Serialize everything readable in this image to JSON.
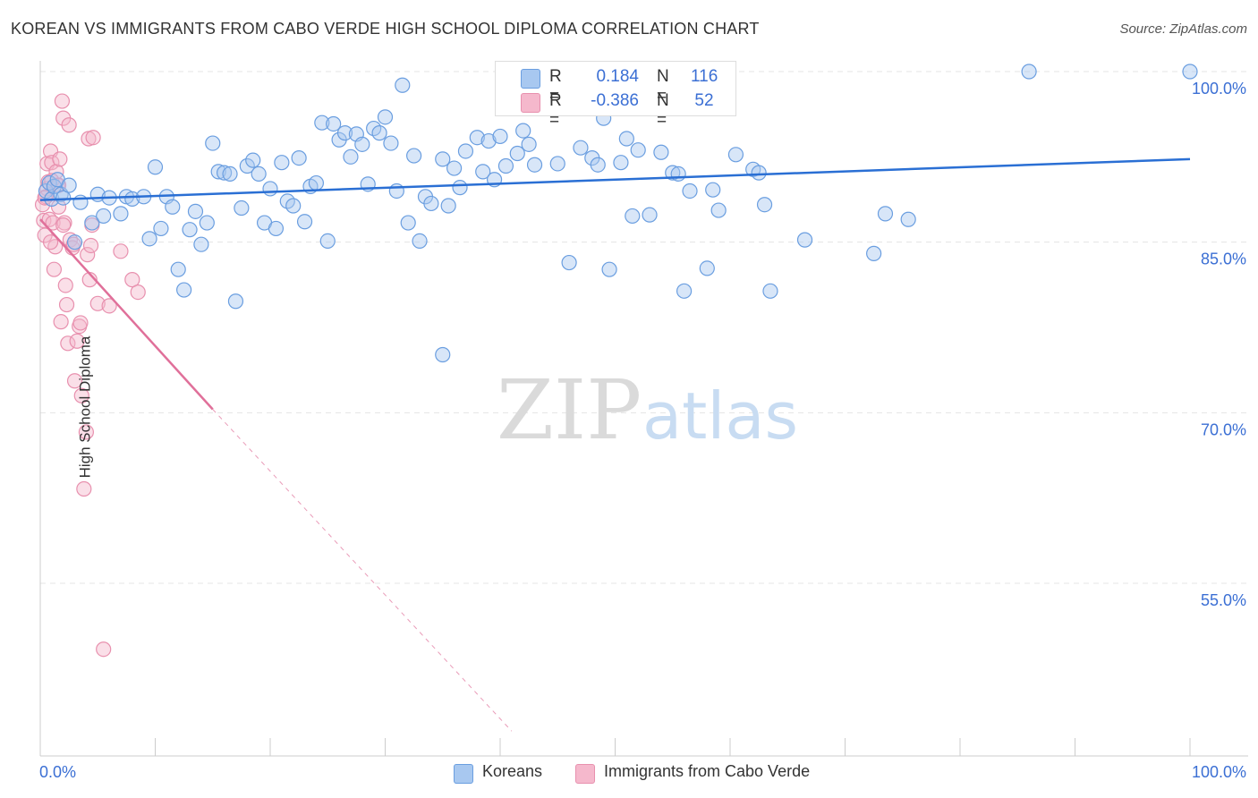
{
  "title": "KOREAN VS IMMIGRANTS FROM CABO VERDE HIGH SCHOOL DIPLOMA CORRELATION CHART",
  "source": "Source: ZipAtlas.com",
  "watermark": {
    "zip": "ZIP",
    "atlas": "atlas"
  },
  "legend": {
    "koreans": {
      "r_label": "R =",
      "r_value": "0.184",
      "n_label": "N =",
      "n_value": "116"
    },
    "caboverde": {
      "r_label": "R =",
      "r_value": "-0.386",
      "n_label": "N =",
      "n_value": "52"
    }
  },
  "bottom_legend": {
    "koreans": "Koreans",
    "caboverde": "Immigrants from Cabo Verde"
  },
  "colors": {
    "blue_fill": "#a8c8f0",
    "blue_stroke": "#6a9ee0",
    "blue_line": "#2a6fd4",
    "pink_fill": "#f5b8cc",
    "pink_stroke": "#e890ae",
    "pink_line": "#e0709a",
    "tick_label": "#3b6fd4",
    "grid": "#e4e4e4"
  },
  "chart_data": {
    "type": "scatter",
    "xlabel": "",
    "ylabel": "High School Diploma",
    "xlim": [
      0,
      100
    ],
    "ylim": [
      42,
      101
    ],
    "x_tick_labels": [
      "0.0%",
      "100.0%"
    ],
    "y_ticks": [
      100,
      85,
      70,
      55
    ],
    "y_tick_labels": [
      "100.0%",
      "85.0%",
      "70.0%",
      "55.0%"
    ],
    "grid": true,
    "series": [
      {
        "name": "Koreans",
        "trend": {
          "x0": 0,
          "y0": 88.7,
          "x1": 100,
          "y1": 92.3
        },
        "points": [
          [
            0.5,
            89.5
          ],
          [
            0.8,
            90.2
          ],
          [
            1.0,
            88.8
          ],
          [
            1.2,
            89.9
          ],
          [
            1.5,
            90.5
          ],
          [
            1.8,
            89.2
          ],
          [
            2.0,
            88.9
          ],
          [
            2.5,
            90.0
          ],
          [
            3.0,
            85.0
          ],
          [
            3.5,
            88.5
          ],
          [
            4.5,
            86.7
          ],
          [
            5.0,
            89.2
          ],
          [
            5.5,
            87.3
          ],
          [
            6.0,
            88.9
          ],
          [
            7.0,
            87.5
          ],
          [
            7.5,
            89.0
          ],
          [
            8.0,
            88.8
          ],
          [
            9.0,
            89.0
          ],
          [
            9.5,
            85.3
          ],
          [
            10.0,
            91.6
          ],
          [
            10.5,
            86.2
          ],
          [
            11.0,
            89.0
          ],
          [
            11.5,
            88.1
          ],
          [
            12.0,
            82.6
          ],
          [
            12.5,
            80.8
          ],
          [
            13.0,
            86.1
          ],
          [
            13.5,
            87.7
          ],
          [
            14.0,
            84.8
          ],
          [
            14.5,
            86.7
          ],
          [
            15.0,
            93.7
          ],
          [
            15.5,
            91.2
          ],
          [
            16.0,
            91.1
          ],
          [
            16.5,
            91.0
          ],
          [
            17.0,
            79.8
          ],
          [
            17.5,
            88.0
          ],
          [
            18.0,
            91.7
          ],
          [
            18.5,
            92.2
          ],
          [
            19.0,
            91.0
          ],
          [
            19.5,
            86.7
          ],
          [
            20.0,
            89.7
          ],
          [
            20.5,
            86.2
          ],
          [
            21.0,
            92.0
          ],
          [
            21.5,
            88.6
          ],
          [
            22.0,
            88.2
          ],
          [
            22.5,
            92.4
          ],
          [
            23.0,
            86.8
          ],
          [
            23.5,
            89.9
          ],
          [
            24.0,
            90.2
          ],
          [
            24.5,
            95.5
          ],
          [
            25.0,
            85.1
          ],
          [
            25.5,
            95.4
          ],
          [
            26.0,
            94.0
          ],
          [
            26.5,
            94.6
          ],
          [
            27.0,
            92.5
          ],
          [
            27.5,
            94.5
          ],
          [
            28.0,
            93.6
          ],
          [
            28.5,
            90.1
          ],
          [
            29.0,
            95.0
          ],
          [
            29.5,
            94.6
          ],
          [
            30.0,
            96.0
          ],
          [
            30.5,
            93.7
          ],
          [
            31.0,
            89.5
          ],
          [
            31.5,
            98.8
          ],
          [
            32.0,
            86.7
          ],
          [
            32.5,
            92.6
          ],
          [
            33.0,
            85.1
          ],
          [
            33.5,
            89.0
          ],
          [
            34.0,
            88.4
          ],
          [
            35.0,
            92.3
          ],
          [
            35.5,
            88.2
          ],
          [
            36.0,
            91.5
          ],
          [
            36.5,
            89.8
          ],
          [
            37.0,
            93.0
          ],
          [
            38.0,
            94.2
          ],
          [
            38.5,
            91.2
          ],
          [
            39.0,
            93.9
          ],
          [
            39.5,
            90.5
          ],
          [
            40.0,
            94.3
          ],
          [
            40.5,
            91.7
          ],
          [
            41.0,
            100.0
          ],
          [
            41.5,
            92.8
          ],
          [
            42.0,
            94.8
          ],
          [
            42.5,
            93.6
          ],
          [
            43.0,
            91.8
          ],
          [
            45.0,
            91.9
          ],
          [
            46.0,
            83.2
          ],
          [
            47.0,
            93.3
          ],
          [
            48.0,
            92.4
          ],
          [
            48.5,
            91.8
          ],
          [
            49.0,
            95.9
          ],
          [
            49.5,
            82.6
          ],
          [
            50.5,
            92.0
          ],
          [
            51.0,
            94.1
          ],
          [
            51.5,
            87.3
          ],
          [
            52.0,
            93.1
          ],
          [
            53.0,
            87.4
          ],
          [
            54.0,
            92.9
          ],
          [
            55.0,
            91.1
          ],
          [
            55.5,
            91.0
          ],
          [
            56.0,
            80.7
          ],
          [
            56.5,
            89.5
          ],
          [
            58.0,
            82.7
          ],
          [
            58.5,
            89.6
          ],
          [
            59.0,
            87.8
          ],
          [
            60.5,
            92.7
          ],
          [
            62.0,
            91.4
          ],
          [
            62.5,
            91.1
          ],
          [
            63.0,
            88.3
          ],
          [
            63.5,
            80.7
          ],
          [
            66.5,
            85.2
          ],
          [
            72.5,
            84.0
          ],
          [
            73.5,
            87.5
          ],
          [
            75.5,
            87.0
          ],
          [
            86.0,
            100.0
          ],
          [
            100.0,
            100.0
          ],
          [
            35.0,
            75.1
          ]
        ]
      },
      {
        "name": "Immigrants from Cabo Verde",
        "trend": {
          "x0": 0,
          "y0": 87.0,
          "x1": 15,
          "y1": 70.3
        },
        "trend_extension": {
          "x0": 15,
          "y0": 70.3,
          "x1": 41,
          "y1": 42
        },
        "points": [
          [
            0.2,
            88.3
          ],
          [
            0.3,
            86.9
          ],
          [
            0.4,
            85.6
          ],
          [
            0.5,
            89.0
          ],
          [
            0.6,
            91.9
          ],
          [
            0.7,
            90.3
          ],
          [
            0.8,
            87.0
          ],
          [
            0.9,
            93.0
          ],
          [
            1.0,
            92.0
          ],
          [
            1.1,
            86.7
          ],
          [
            1.2,
            82.6
          ],
          [
            1.3,
            84.6
          ],
          [
            1.4,
            91.2
          ],
          [
            1.5,
            90.0
          ],
          [
            1.6,
            88.1
          ],
          [
            1.7,
            92.3
          ],
          [
            1.8,
            78.0
          ],
          [
            1.9,
            97.4
          ],
          [
            2.0,
            95.9
          ],
          [
            2.1,
            86.7
          ],
          [
            2.2,
            81.2
          ],
          [
            2.3,
            79.5
          ],
          [
            2.4,
            76.1
          ],
          [
            2.5,
            95.3
          ],
          [
            2.6,
            85.2
          ],
          [
            2.8,
            84.5
          ],
          [
            2.9,
            84.8
          ],
          [
            3.0,
            72.8
          ],
          [
            3.2,
            76.3
          ],
          [
            3.4,
            77.6
          ],
          [
            3.5,
            77.9
          ],
          [
            3.6,
            71.5
          ],
          [
            3.8,
            63.3
          ],
          [
            4.0,
            68.3
          ],
          [
            4.1,
            83.9
          ],
          [
            4.2,
            94.1
          ],
          [
            4.3,
            81.7
          ],
          [
            4.4,
            84.7
          ],
          [
            4.5,
            86.5
          ],
          [
            4.6,
            94.2
          ],
          [
            5.0,
            79.6
          ],
          [
            5.5,
            49.2
          ],
          [
            6.0,
            79.4
          ],
          [
            7.0,
            84.2
          ],
          [
            8.0,
            81.7
          ],
          [
            8.5,
            80.6
          ],
          [
            0.6,
            89.7
          ],
          [
            1.0,
            90.4
          ],
          [
            0.4,
            88.9
          ],
          [
            1.6,
            90.0
          ],
          [
            0.9,
            85.0
          ],
          [
            2.0,
            86.5
          ]
        ]
      }
    ]
  }
}
